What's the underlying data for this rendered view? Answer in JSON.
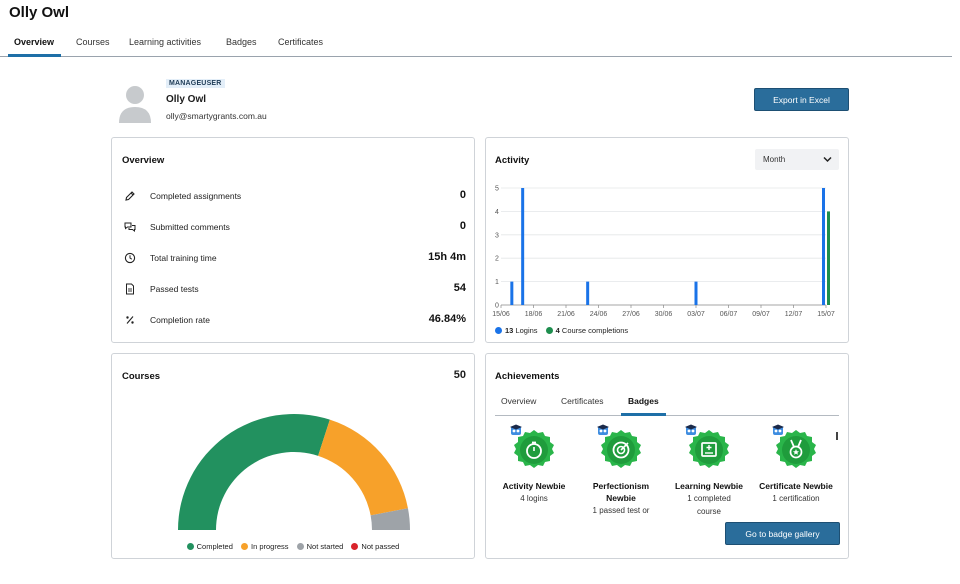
{
  "page": {
    "title": "Olly Owl"
  },
  "tabs": [
    "Overview",
    "Courses",
    "Learning activities",
    "Badges",
    "Certificates"
  ],
  "profile": {
    "role": "MANAGEUSER",
    "name": "Olly Owl",
    "email": "olly@smartygrants.com.au",
    "export_label": "Export in Excel"
  },
  "overview": {
    "title": "Overview",
    "rows": [
      {
        "icon": "pencil-icon",
        "label": "Completed assignments",
        "value": "0"
      },
      {
        "icon": "comments-icon",
        "label": "Submitted comments",
        "value": "0"
      },
      {
        "icon": "clock-icon",
        "label": "Total training time",
        "value": "15h 4m"
      },
      {
        "icon": "document-icon",
        "label": "Passed tests",
        "value": "54"
      },
      {
        "icon": "percent-icon",
        "label": "Completion rate",
        "value": "46.84%"
      }
    ]
  },
  "activity": {
    "title": "Activity",
    "period": "Month",
    "legend": [
      {
        "count": "13",
        "label": "Logins",
        "color": "#1a73e8"
      },
      {
        "count": "4",
        "label": "Course completions",
        "color": "#1e8e4e"
      }
    ]
  },
  "courses": {
    "title": "Courses",
    "count": "50",
    "legend": [
      {
        "label": "Completed",
        "color": "#22915f"
      },
      {
        "label": "In progress",
        "color": "#f7a12a"
      },
      {
        "label": "Not started",
        "color": "#9ea3a8"
      },
      {
        "label": "Not passed",
        "color": "#d9232b"
      }
    ]
  },
  "achievements": {
    "title": "Achievements",
    "tabs": [
      "Overview",
      "Certificates",
      "Badges"
    ],
    "badges": [
      {
        "name": "Activity Newbie",
        "desc": [
          "4 logins"
        ],
        "icon": "stopwatch-badge-icon"
      },
      {
        "name": "Perfectionism Newbie",
        "desc": [
          "1 passed test or"
        ],
        "icon": "target-badge-icon"
      },
      {
        "name": "Learning Newbie",
        "desc": [
          "1 completed",
          "course"
        ],
        "icon": "course-badge-icon"
      },
      {
        "name": "Certificate Newbie",
        "desc": [
          "1 certification"
        ],
        "icon": "medal-badge-icon"
      }
    ],
    "gallery_label": "Go to badge gallery"
  },
  "chart_data": [
    {
      "type": "bar",
      "title": "Activity",
      "x_tick_labels": [
        "15/06",
        "18/06",
        "21/06",
        "24/06",
        "27/06",
        "30/06",
        "03/07",
        "06/07",
        "09/07",
        "12/07",
        "15/07"
      ],
      "y_tick_labels": [
        "0",
        "1",
        "2",
        "3",
        "4",
        "5"
      ],
      "ylim": [
        0,
        5
      ],
      "x_range": [
        "15/06",
        "15/07"
      ],
      "grid": true,
      "legend_position": "bottom-left",
      "series": [
        {
          "name": "Logins",
          "color": "#1a73e8",
          "points": [
            {
              "x": "16/06",
              "y": 1
            },
            {
              "x": "17/06",
              "y": 5
            },
            {
              "x": "23/06",
              "y": 1
            },
            {
              "x": "03/07",
              "y": 1
            },
            {
              "x": "15/07",
              "y": 5
            }
          ]
        },
        {
          "name": "Course completions",
          "color": "#1e8e4e",
          "points": [
            {
              "x": "15/07",
              "y": 4
            }
          ]
        }
      ]
    },
    {
      "type": "pie",
      "title": "Courses",
      "shape": "half-donut",
      "categories": [
        "Completed",
        "In progress",
        "Not started",
        "Not passed"
      ],
      "values": [
        30,
        17,
        3,
        0
      ],
      "colors": [
        "#22915f",
        "#f7a12a",
        "#9ea3a8",
        "#d9232b"
      ]
    }
  ]
}
